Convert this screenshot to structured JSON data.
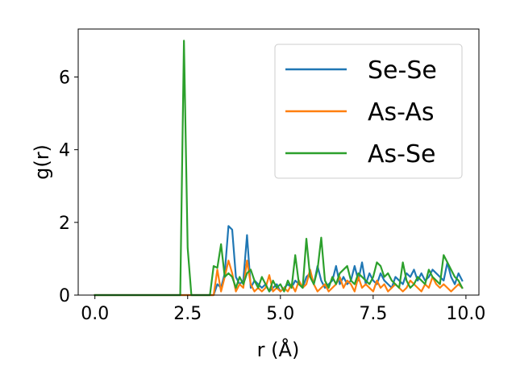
{
  "chart_data": {
    "type": "line",
    "title": "",
    "xlabel": "r (Å)",
    "ylabel": "g(r)",
    "xlim": [
      -0.45,
      10.35
    ],
    "ylim": [
      0,
      7.32
    ],
    "xticks": [
      0.0,
      2.5,
      5.0,
      7.5,
      10.0
    ],
    "xtick_labels": [
      "0.0",
      "2.5",
      "5.0",
      "7.5",
      "10.0"
    ],
    "yticks": [
      0,
      2,
      4,
      6
    ],
    "ytick_labels": [
      "0",
      "2",
      "4",
      "6"
    ],
    "grid": false,
    "legend_position": "top-right",
    "series": [
      {
        "name": "Se-Se",
        "color": "#1f77b4",
        "x": [
          0.0,
          0.1,
          0.2,
          0.3,
          0.4,
          0.5,
          0.6,
          0.7,
          0.8,
          0.9,
          1.0,
          1.1,
          1.2,
          1.3,
          1.4,
          1.5,
          1.6,
          1.7,
          1.8,
          1.9,
          2.0,
          2.1,
          2.2,
          2.3,
          2.4,
          2.5,
          2.6,
          2.7,
          2.8,
          2.9,
          3.0,
          3.1,
          3.2,
          3.3,
          3.4,
          3.5,
          3.6,
          3.7,
          3.8,
          3.9,
          4.0,
          4.1,
          4.2,
          4.3,
          4.4,
          4.5,
          4.6,
          4.7,
          4.8,
          4.9,
          5.0,
          5.1,
          5.2,
          5.3,
          5.4,
          5.5,
          5.6,
          5.7,
          5.8,
          5.9,
          6.0,
          6.1,
          6.2,
          6.3,
          6.4,
          6.5,
          6.6,
          6.7,
          6.8,
          6.9,
          7.0,
          7.1,
          7.2,
          7.3,
          7.4,
          7.5,
          7.6,
          7.7,
          7.8,
          7.9,
          8.0,
          8.1,
          8.2,
          8.3,
          8.4,
          8.5,
          8.6,
          8.7,
          8.8,
          8.9,
          9.0,
          9.1,
          9.2,
          9.3,
          9.4,
          9.5,
          9.6,
          9.7,
          9.8,
          9.9
        ],
        "y": [
          0,
          0,
          0,
          0,
          0,
          0,
          0,
          0,
          0,
          0,
          0,
          0,
          0,
          0,
          0,
          0,
          0,
          0,
          0,
          0,
          0,
          0,
          0,
          0,
          0,
          0,
          0,
          0,
          0,
          0,
          0,
          0,
          0,
          0.3,
          0.2,
          0.6,
          1.9,
          1.8,
          0.5,
          0.3,
          0.4,
          1.65,
          0.2,
          0.4,
          0.3,
          0.2,
          0.3,
          0.1,
          0.2,
          0.3,
          0.1,
          0.2,
          0.3,
          0.2,
          0.4,
          0.3,
          0.2,
          0.5,
          0.6,
          0.3,
          0.8,
          0.4,
          0.2,
          0.3,
          0.4,
          0.8,
          0.3,
          0.5,
          0.3,
          0.4,
          0.8,
          0.4,
          0.9,
          0.3,
          0.6,
          0.4,
          0.3,
          0.6,
          0.4,
          0.3,
          0.2,
          0.5,
          0.4,
          0.3,
          0.6,
          0.5,
          0.7,
          0.4,
          0.6,
          0.4,
          0.5,
          0.7,
          0.6,
          0.5,
          0.4,
          0.9,
          0.5,
          0.3,
          0.6,
          0.4
        ]
      },
      {
        "name": "As-As",
        "color": "#ff7f0e",
        "x": [
          0.0,
          0.1,
          0.2,
          0.3,
          0.4,
          0.5,
          0.6,
          0.7,
          0.8,
          0.9,
          1.0,
          1.1,
          1.2,
          1.3,
          1.4,
          1.5,
          1.6,
          1.7,
          1.8,
          1.9,
          2.0,
          2.1,
          2.2,
          2.3,
          2.4,
          2.5,
          2.6,
          2.7,
          2.8,
          2.9,
          3.0,
          3.1,
          3.2,
          3.3,
          3.4,
          3.5,
          3.6,
          3.7,
          3.8,
          3.9,
          4.0,
          4.1,
          4.2,
          4.3,
          4.4,
          4.5,
          4.6,
          4.7,
          4.8,
          4.9,
          5.0,
          5.1,
          5.2,
          5.3,
          5.4,
          5.5,
          5.6,
          5.7,
          5.8,
          5.9,
          6.0,
          6.1,
          6.2,
          6.3,
          6.4,
          6.5,
          6.6,
          6.7,
          6.8,
          6.9,
          7.0,
          7.1,
          7.2,
          7.3,
          7.4,
          7.5,
          7.6,
          7.7,
          7.8,
          7.9,
          8.0,
          8.1,
          8.2,
          8.3,
          8.4,
          8.5,
          8.6,
          8.7,
          8.8,
          8.9,
          9.0,
          9.1,
          9.2,
          9.3,
          9.4,
          9.5,
          9.6,
          9.7,
          9.8,
          9.9
        ],
        "y": [
          0,
          0,
          0,
          0,
          0,
          0,
          0,
          0,
          0,
          0,
          0,
          0,
          0,
          0,
          0,
          0,
          0,
          0,
          0,
          0,
          0,
          0,
          0,
          0,
          0,
          0,
          0,
          0,
          0,
          0,
          0,
          0,
          0,
          0.7,
          0.1,
          0.5,
          0.95,
          0.6,
          0.1,
          0.3,
          0.2,
          0.95,
          0.3,
          0.1,
          0.2,
          0.1,
          0.2,
          0.55,
          0.1,
          0.2,
          0.1,
          0.2,
          0.1,
          0.3,
          0.1,
          0.4,
          0.2,
          0.3,
          0.7,
          0.3,
          0.1,
          0.2,
          0.3,
          0.1,
          0.2,
          0.3,
          0.5,
          0.2,
          0.4,
          0.3,
          0.1,
          0.5,
          0.2,
          0.3,
          0.2,
          0.1,
          0.4,
          0.2,
          0.3,
          0.1,
          0.2,
          0.3,
          0.2,
          0.1,
          0.2,
          0.4,
          0.3,
          0.2,
          0.1,
          0.3,
          0.2,
          0.5,
          0.3,
          0.2,
          0.3,
          0.2,
          0.1,
          0.2,
          0.3,
          0.2
        ]
      },
      {
        "name": "As-Se",
        "color": "#2ca02c",
        "x": [
          0.0,
          0.1,
          0.2,
          0.3,
          0.4,
          0.5,
          0.6,
          0.7,
          0.8,
          0.9,
          1.0,
          1.1,
          1.2,
          1.3,
          1.4,
          1.5,
          1.6,
          1.7,
          1.8,
          1.9,
          2.0,
          2.1,
          2.2,
          2.3,
          2.4,
          2.5,
          2.6,
          2.7,
          2.8,
          2.9,
          3.0,
          3.1,
          3.2,
          3.3,
          3.4,
          3.5,
          3.6,
          3.7,
          3.8,
          3.9,
          4.0,
          4.1,
          4.2,
          4.3,
          4.4,
          4.5,
          4.6,
          4.7,
          4.8,
          4.9,
          5.0,
          5.1,
          5.2,
          5.3,
          5.4,
          5.5,
          5.6,
          5.7,
          5.8,
          5.9,
          6.0,
          6.1,
          6.2,
          6.3,
          6.4,
          6.5,
          6.6,
          6.7,
          6.8,
          6.9,
          7.0,
          7.1,
          7.2,
          7.3,
          7.4,
          7.5,
          7.6,
          7.7,
          7.8,
          7.9,
          8.0,
          8.1,
          8.2,
          8.3,
          8.4,
          8.5,
          8.6,
          8.7,
          8.8,
          8.9,
          9.0,
          9.1,
          9.2,
          9.3,
          9.4,
          9.5,
          9.6,
          9.7,
          9.8,
          9.9
        ],
        "y": [
          0,
          0,
          0,
          0,
          0,
          0,
          0,
          0,
          0,
          0,
          0,
          0,
          0,
          0,
          0,
          0,
          0,
          0,
          0,
          0,
          0,
          0,
          0,
          0,
          7.0,
          1.3,
          0,
          0,
          0,
          0,
          0,
          0,
          0.8,
          0.75,
          1.4,
          0.5,
          0.6,
          0.5,
          0.2,
          0.5,
          0.3,
          0.6,
          0.7,
          0.4,
          0.2,
          0.5,
          0.3,
          0.1,
          0.4,
          0.2,
          0.3,
          0.1,
          0.4,
          0.2,
          1.1,
          0.3,
          0.2,
          1.55,
          0.5,
          0.3,
          0.7,
          1.58,
          0.4,
          0.2,
          0.5,
          0.3,
          0.6,
          0.7,
          0.8,
          0.4,
          0.3,
          0.6,
          0.5,
          0.4,
          0.3,
          0.5,
          0.9,
          0.8,
          0.5,
          0.6,
          0.4,
          0.3,
          0.2,
          0.9,
          0.4,
          0.2,
          0.3,
          0.5,
          0.4,
          0.3,
          0.7,
          0.5,
          0.4,
          0.3,
          1.1,
          0.9,
          0.7,
          0.5,
          0.4,
          0.2
        ]
      }
    ]
  }
}
